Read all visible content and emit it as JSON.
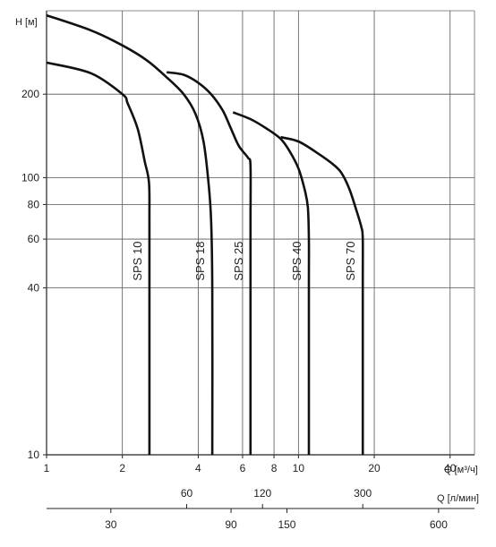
{
  "chart_data": {
    "type": "line",
    "x_scale": "log",
    "y_scale": "log",
    "xlim": [
      1,
      50
    ],
    "ylim": [
      10,
      400
    ],
    "grid": true,
    "ylabel": "H [м]",
    "xlabel": "Q [м³/ч]",
    "x_ticks": [
      "1",
      "2",
      "4",
      "6",
      "8",
      "10",
      "20",
      "40"
    ],
    "y_ticks": [
      "10",
      "40",
      "60",
      "80",
      "100",
      "200"
    ],
    "secondary_axis": {
      "label": "Q [л/мин]",
      "ticks_top": [
        "60",
        "120",
        "300"
      ],
      "ticks_bottom": [
        "30",
        "90",
        "150",
        "600"
      ]
    },
    "series": [
      {
        "name": "SPS 10",
        "color": "#111111",
        "points": [
          [
            1.0,
            260
          ],
          [
            1.5,
            238
          ],
          [
            2.0,
            200
          ],
          [
            2.1,
            185
          ],
          [
            2.3,
            150
          ],
          [
            2.45,
            115
          ],
          [
            2.55,
            96
          ],
          [
            2.56,
            70
          ],
          [
            2.56,
            40
          ],
          [
            2.56,
            10
          ]
        ]
      },
      {
        "name": "SPS 18",
        "color": "#111111",
        "points": [
          [
            1.0,
            385
          ],
          [
            1.5,
            340
          ],
          [
            2.0,
            300
          ],
          [
            2.5,
            265
          ],
          [
            3.0,
            230
          ],
          [
            3.5,
            200
          ],
          [
            3.9,
            170
          ],
          [
            4.2,
            135
          ],
          [
            4.4,
            95
          ],
          [
            4.5,
            70
          ],
          [
            4.55,
            40
          ],
          [
            4.55,
            10
          ]
        ]
      },
      {
        "name": "SPS 25",
        "color": "#111111",
        "points": [
          [
            3.0,
            240
          ],
          [
            3.5,
            235
          ],
          [
            4.0,
            220
          ],
          [
            4.5,
            200
          ],
          [
            5.0,
            175
          ],
          [
            5.4,
            150
          ],
          [
            5.8,
            130
          ],
          [
            6.3,
            118
          ],
          [
            6.45,
            110
          ],
          [
            6.45,
            70
          ],
          [
            6.45,
            40
          ],
          [
            6.45,
            10
          ]
        ]
      },
      {
        "name": "SPS 40",
        "color": "#111111",
        "points": [
          [
            5.5,
            172
          ],
          [
            6.5,
            162
          ],
          [
            7.5,
            150
          ],
          [
            8.5,
            138
          ],
          [
            9.2,
            125
          ],
          [
            10.0,
            108
          ],
          [
            10.6,
            90
          ],
          [
            10.9,
            78
          ],
          [
            11.0,
            60
          ],
          [
            11.0,
            40
          ],
          [
            11.0,
            10
          ]
        ]
      },
      {
        "name": "SPS 70",
        "color": "#111111",
        "points": [
          [
            8.5,
            140
          ],
          [
            10.0,
            135
          ],
          [
            12.0,
            122
          ],
          [
            14.0,
            110
          ],
          [
            15.0,
            102
          ],
          [
            16.0,
            90
          ],
          [
            17.0,
            76
          ],
          [
            17.8,
            66
          ],
          [
            18.0,
            60
          ],
          [
            18.0,
            40
          ],
          [
            18.0,
            10
          ]
        ]
      }
    ]
  }
}
